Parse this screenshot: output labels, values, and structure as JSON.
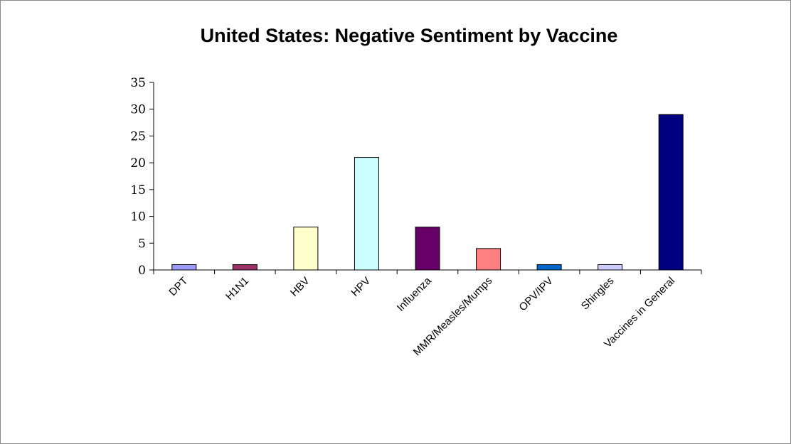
{
  "chart_data": {
    "type": "bar",
    "title": "United States: Negative Sentiment by Vaccine",
    "categories": [
      "DPT",
      "H1N1",
      "HBV",
      "HPV",
      "Influenza",
      "MMR/Measles/Mumps",
      "OPV/IPV",
      "Shingles",
      "Vaccines in General"
    ],
    "values": [
      1,
      1,
      8,
      21,
      8,
      4,
      1,
      1,
      29
    ],
    "colors": [
      "#9999ff",
      "#993366",
      "#ffffcc",
      "#ccffff",
      "#660066",
      "#ff8080",
      "#0066cc",
      "#ccccff",
      "#000080"
    ],
    "ylim": [
      0,
      35
    ],
    "yticks": [
      0,
      5,
      10,
      15,
      20,
      25,
      30,
      35
    ],
    "xlabel": "",
    "ylabel": "",
    "grid": false,
    "legend": "none"
  }
}
